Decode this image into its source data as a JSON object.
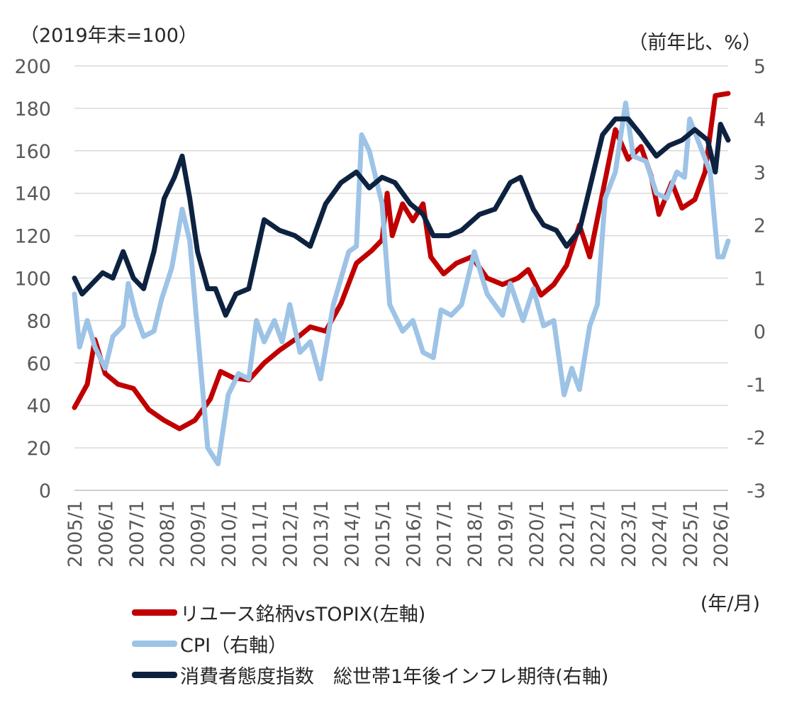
{
  "chart_data": {
    "type": "line",
    "title": "",
    "left_axis": {
      "unit": "（2019年末=100）",
      "ylim": [
        0,
        200
      ],
      "ticks": [
        0,
        20,
        40,
        60,
        80,
        100,
        120,
        140,
        160,
        180,
        200
      ]
    },
    "right_axis": {
      "unit": "（前年比、%）",
      "ylim": [
        -3,
        5
      ],
      "ticks": [
        -3,
        -2,
        -1,
        0,
        1,
        2,
        3,
        4,
        5
      ]
    },
    "x_axis": {
      "unit": "(年/月)",
      "range": [
        "2005/1",
        "2026/4"
      ],
      "tick_labels": [
        "2005/1",
        "2006/1",
        "2007/1",
        "2008/1",
        "2009/1",
        "2010/1",
        "2011/1",
        "2012/1",
        "2013/1",
        "2014/1",
        "2015/1",
        "2016/1",
        "2017/1",
        "2018/1",
        "2019/1",
        "2020/1",
        "2021/1",
        "2022/1",
        "2023/1",
        "2024/1",
        "2025/1",
        "2026/1"
      ]
    },
    "grid": "horizontal",
    "legend_position": "bottom",
    "series": [
      {
        "name": "リユース銘柄vsTOPIX(左軸)",
        "axis": "left",
        "color": "#c00000",
        "points": [
          [
            "2005/1",
            39
          ],
          [
            "2005/6",
            50
          ],
          [
            "2005/9",
            71
          ],
          [
            "2006/1",
            55
          ],
          [
            "2006/6",
            50
          ],
          [
            "2006/12",
            48
          ],
          [
            "2007/6",
            38
          ],
          [
            "2007/12",
            33
          ],
          [
            "2008/6",
            29
          ],
          [
            "2008/12",
            33
          ],
          [
            "2009/6",
            43
          ],
          [
            "2009/10",
            56
          ],
          [
            "2010/3",
            53
          ],
          [
            "2010/9",
            52
          ],
          [
            "2011/3",
            60
          ],
          [
            "2011/9",
            66
          ],
          [
            "2012/3",
            71
          ],
          [
            "2012/9",
            77
          ],
          [
            "2013/3",
            75
          ],
          [
            "2013/9",
            88
          ],
          [
            "2014/3",
            107
          ],
          [
            "2014/9",
            113
          ],
          [
            "2015/1",
            118
          ],
          [
            "2015/3",
            140
          ],
          [
            "2015/5",
            120
          ],
          [
            "2015/9",
            135
          ],
          [
            "2016/1",
            127
          ],
          [
            "2016/5",
            135
          ],
          [
            "2016/8",
            110
          ],
          [
            "2017/1",
            102
          ],
          [
            "2017/6",
            107
          ],
          [
            "2017/12",
            110
          ],
          [
            "2018/6",
            100
          ],
          [
            "2018/12",
            97
          ],
          [
            "2019/6",
            100
          ],
          [
            "2019/10",
            104
          ],
          [
            "2020/3",
            92
          ],
          [
            "2020/8",
            97
          ],
          [
            "2021/1",
            106
          ],
          [
            "2021/6",
            125
          ],
          [
            "2021/10",
            110
          ],
          [
            "2022/3",
            140
          ],
          [
            "2022/8",
            170
          ],
          [
            "2023/1",
            156
          ],
          [
            "2023/6",
            162
          ],
          [
            "2023/10",
            148
          ],
          [
            "2024/1",
            130
          ],
          [
            "2024/6",
            145
          ],
          [
            "2024/10",
            133
          ],
          [
            "2025/3",
            137
          ],
          [
            "2025/7",
            150
          ],
          [
            "2025/11",
            186
          ],
          [
            "2026/4",
            187
          ]
        ]
      },
      {
        "name": "CPI（右軸）",
        "axis": "right",
        "color": "#9dc3e6",
        "points": [
          [
            "2005/1",
            0.7
          ],
          [
            "2005/3",
            -0.3
          ],
          [
            "2005/6",
            0.2
          ],
          [
            "2005/9",
            -0.3
          ],
          [
            "2006/1",
            -0.7
          ],
          [
            "2006/4",
            -0.1
          ],
          [
            "2006/8",
            0.1
          ],
          [
            "2006/10",
            0.9
          ],
          [
            "2007/1",
            0.3
          ],
          [
            "2007/4",
            -0.1
          ],
          [
            "2007/8",
            0.0
          ],
          [
            "2007/11",
            0.6
          ],
          [
            "2008/3",
            1.2
          ],
          [
            "2008/7",
            2.3
          ],
          [
            "2008/10",
            1.7
          ],
          [
            "2009/1",
            0.0
          ],
          [
            "2009/5",
            -2.2
          ],
          [
            "2009/9",
            -2.5
          ],
          [
            "2010/1",
            -1.2
          ],
          [
            "2010/5",
            -0.8
          ],
          [
            "2010/9",
            -0.9
          ],
          [
            "2010/12",
            0.2
          ],
          [
            "2011/3",
            -0.2
          ],
          [
            "2011/7",
            0.2
          ],
          [
            "2011/10",
            -0.2
          ],
          [
            "2012/1",
            0.5
          ],
          [
            "2012/5",
            -0.4
          ],
          [
            "2012/9",
            -0.2
          ],
          [
            "2013/1",
            -0.9
          ],
          [
            "2013/6",
            0.5
          ],
          [
            "2013/12",
            1.5
          ],
          [
            "2014/3",
            1.6
          ],
          [
            "2014/5",
            3.7
          ],
          [
            "2014/8",
            3.4
          ],
          [
            "2015/1",
            2.4
          ],
          [
            "2015/4",
            0.5
          ],
          [
            "2015/9",
            0.0
          ],
          [
            "2016/1",
            0.2
          ],
          [
            "2016/5",
            -0.4
          ],
          [
            "2016/9",
            -0.5
          ],
          [
            "2016/12",
            0.4
          ],
          [
            "2017/4",
            0.3
          ],
          [
            "2017/8",
            0.5
          ],
          [
            "2018/1",
            1.5
          ],
          [
            "2018/6",
            0.7
          ],
          [
            "2018/12",
            0.3
          ],
          [
            "2019/3",
            0.9
          ],
          [
            "2019/8",
            0.2
          ],
          [
            "2019/12",
            0.8
          ],
          [
            "2020/4",
            0.1
          ],
          [
            "2020/8",
            0.2
          ],
          [
            "2020/12",
            -1.2
          ],
          [
            "2021/3",
            -0.7
          ],
          [
            "2021/6",
            -1.1
          ],
          [
            "2021/10",
            0.1
          ],
          [
            "2022/1",
            0.5
          ],
          [
            "2022/4",
            2.5
          ],
          [
            "2022/8",
            3.0
          ],
          [
            "2022/12",
            4.3
          ],
          [
            "2023/3",
            3.3
          ],
          [
            "2023/8",
            3.2
          ],
          [
            "2023/12",
            2.6
          ],
          [
            "2024/4",
            2.5
          ],
          [
            "2024/8",
            3.0
          ],
          [
            "2024/11",
            2.9
          ],
          [
            "2025/1",
            4.0
          ],
          [
            "2025/5",
            3.5
          ],
          [
            "2025/9",
            3.0
          ],
          [
            "2025/12",
            1.4
          ],
          [
            "2026/2",
            1.4
          ],
          [
            "2026/4",
            1.7
          ]
        ]
      },
      {
        "name": "消費者態度指数　総世帯1年後インフレ期待(右軸)",
        "axis": "right",
        "color": "#0d2240",
        "points": [
          [
            "2005/1",
            1.0
          ],
          [
            "2005/4",
            0.7
          ],
          [
            "2005/8",
            0.9
          ],
          [
            "2005/12",
            1.1
          ],
          [
            "2006/4",
            1.0
          ],
          [
            "2006/8",
            1.5
          ],
          [
            "2006/12",
            1.0
          ],
          [
            "2007/4",
            0.8
          ],
          [
            "2007/8",
            1.5
          ],
          [
            "2007/12",
            2.5
          ],
          [
            "2008/4",
            2.9
          ],
          [
            "2008/7",
            3.3
          ],
          [
            "2008/10",
            2.5
          ],
          [
            "2009/1",
            1.5
          ],
          [
            "2009/5",
            0.8
          ],
          [
            "2009/8",
            0.8
          ],
          [
            "2009/12",
            0.3
          ],
          [
            "2010/4",
            0.7
          ],
          [
            "2010/9",
            0.8
          ],
          [
            "2011/3",
            2.1
          ],
          [
            "2011/9",
            1.9
          ],
          [
            "2012/3",
            1.8
          ],
          [
            "2012/9",
            1.6
          ],
          [
            "2013/3",
            2.4
          ],
          [
            "2013/9",
            2.8
          ],
          [
            "2014/3",
            3.0
          ],
          [
            "2014/8",
            2.7
          ],
          [
            "2015/1",
            2.9
          ],
          [
            "2015/6",
            2.8
          ],
          [
            "2015/12",
            2.4
          ],
          [
            "2016/5",
            2.2
          ],
          [
            "2016/9",
            1.8
          ],
          [
            "2017/3",
            1.8
          ],
          [
            "2017/8",
            1.9
          ],
          [
            "2018/3",
            2.2
          ],
          [
            "2018/9",
            2.3
          ],
          [
            "2019/3",
            2.8
          ],
          [
            "2019/7",
            2.9
          ],
          [
            "2019/12",
            2.3
          ],
          [
            "2020/4",
            2.0
          ],
          [
            "2020/9",
            1.9
          ],
          [
            "2021/1",
            1.6
          ],
          [
            "2021/6",
            1.9
          ],
          [
            "2021/10",
            2.7
          ],
          [
            "2022/3",
            3.7
          ],
          [
            "2022/8",
            4.0
          ],
          [
            "2023/1",
            4.0
          ],
          [
            "2023/6",
            3.7
          ],
          [
            "2023/12",
            3.3
          ],
          [
            "2024/5",
            3.5
          ],
          [
            "2024/10",
            3.6
          ],
          [
            "2025/3",
            3.8
          ],
          [
            "2025/8",
            3.6
          ],
          [
            "2025/11",
            3.0
          ],
          [
            "2026/1",
            3.9
          ],
          [
            "2026/4",
            3.6
          ]
        ]
      }
    ]
  }
}
